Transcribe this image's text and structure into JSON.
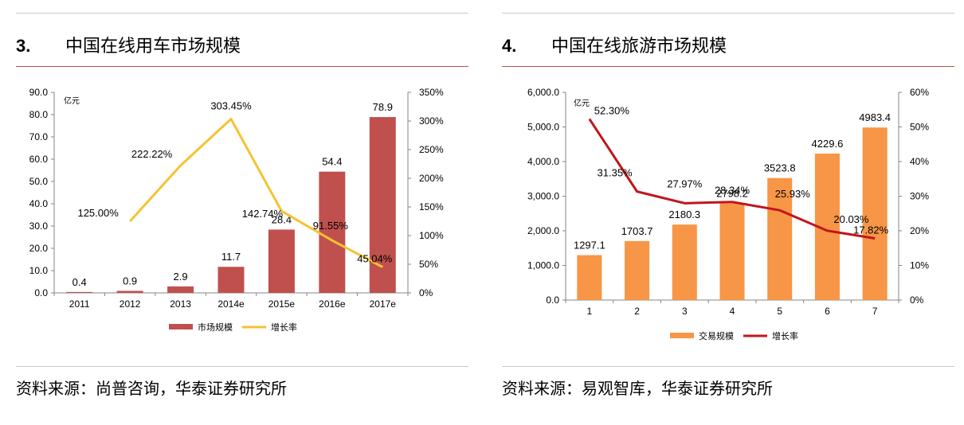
{
  "panels": [
    {
      "number": "3.",
      "title": "中国在线用车市场规模",
      "source": "资料来源：尚普咨询，华泰证券研究所",
      "chart_data": {
        "type": "bar+line",
        "unit_label": "亿元",
        "categories": [
          "2011",
          "2012",
          "2013",
          "2014e",
          "2015e",
          "2016e",
          "2017e"
        ],
        "bar_series": {
          "name": "市场规模",
          "values": [
            0.4,
            0.9,
            2.9,
            11.7,
            28.4,
            54.4,
            78.9
          ],
          "labels": [
            "0.4",
            "0.9",
            "2.9",
            "11.7",
            "28.4",
            "54.4",
            "78.9"
          ],
          "color": "#c0504d"
        },
        "line_series": {
          "name": "增长率",
          "values": [
            null,
            125.0,
            222.22,
            303.45,
            142.74,
            91.55,
            45.04
          ],
          "labels": [
            "",
            "125.00%",
            "222.22%",
            "303.45%",
            "142.74%",
            "91.55%",
            "45.04%"
          ],
          "color": "#f5c332"
        },
        "y_left": {
          "min": 0,
          "max": 90,
          "step": 10,
          "tick_labels": [
            "0.0",
            "10.0",
            "20.0",
            "30.0",
            "40.0",
            "50.0",
            "60.0",
            "70.0",
            "80.0",
            "90.0"
          ]
        },
        "y_right": {
          "min": 0,
          "max": 350,
          "step": 50,
          "tick_labels": [
            "0%",
            "50%",
            "100%",
            "150%",
            "200%",
            "250%",
            "300%",
            "350%"
          ]
        },
        "legend_position": "bottom-center"
      }
    },
    {
      "number": "4.",
      "title": "中国在线旅游市场规模",
      "source": "资料来源：易观智库，华泰证券研究所",
      "chart_data": {
        "type": "bar+line",
        "unit_label": "亿元",
        "categories": [
          "1",
          "2",
          "3",
          "4",
          "5",
          "6",
          "7"
        ],
        "bar_series": {
          "name": "交易规模",
          "values": [
            1297.1,
            1703.7,
            2180.3,
            2798.2,
            3523.8,
            4229.6,
            4983.4
          ],
          "labels": [
            "1297.1",
            "1703.7",
            "2180.3",
            "2798.2",
            "3523.8",
            "4229.6",
            "4983.4"
          ],
          "color": "#f79646"
        },
        "line_series": {
          "name": "增长率",
          "values": [
            52.3,
            31.35,
            27.97,
            28.34,
            25.93,
            20.03,
            17.82
          ],
          "labels": [
            "52.30%",
            "31.35%",
            "27.97%",
            "28.34%",
            "25.93%",
            "20.03%",
            "17.82%"
          ],
          "color": "#c0161c"
        },
        "y_left": {
          "min": 0,
          "max": 6000,
          "step": 1000,
          "tick_labels": [
            "0.0",
            "1,000.0",
            "2,000.0",
            "3,000.0",
            "4,000.0",
            "5,000.0",
            "6,000.0"
          ]
        },
        "y_right": {
          "min": 0,
          "max": 60,
          "step": 10,
          "tick_labels": [
            "0%",
            "10%",
            "20%",
            "30%",
            "40%",
            "50%",
            "60%"
          ]
        },
        "legend_position": "bottom-center"
      }
    }
  ]
}
